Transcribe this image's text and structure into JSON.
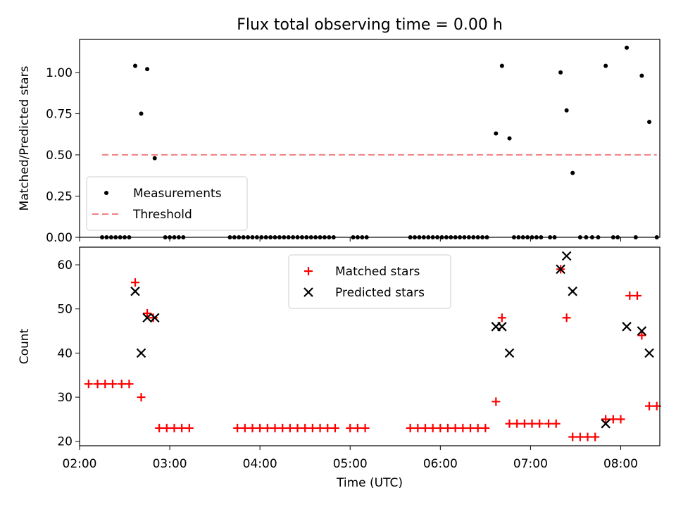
{
  "figure": {
    "title": "Flux total observing time = 0.00 h"
  },
  "chart_data": [
    {
      "type": "scatter",
      "ylabel": "Matched/Predicted stars",
      "xlim": [
        "02:00",
        "08:26"
      ],
      "ylim": [
        0,
        1.2
      ],
      "x_ticks": [
        "02:00",
        "03:00",
        "04:00",
        "05:00",
        "06:00",
        "07:00",
        "08:00"
      ],
      "y_ticks": [
        "0.00",
        "0.25",
        "0.50",
        "0.75",
        "1.00"
      ],
      "legend_position": "lower left",
      "series": [
        {
          "name": "Measurements",
          "color": "#000000",
          "marker": "dot",
          "points": [
            [
              "02:15",
              0
            ],
            [
              "02:18",
              0
            ],
            [
              "02:21",
              0
            ],
            [
              "02:24",
              0
            ],
            [
              "02:27",
              0
            ],
            [
              "02:30",
              0
            ],
            [
              "02:33",
              0
            ],
            [
              "02:37",
              1.04
            ],
            [
              "02:41",
              0.75
            ],
            [
              "02:45",
              1.02
            ],
            [
              "02:50",
              0.48
            ],
            [
              "02:57",
              0
            ],
            [
              "03:00",
              0
            ],
            [
              "03:03",
              0
            ],
            [
              "03:06",
              0
            ],
            [
              "03:09",
              0
            ],
            [
              "03:40",
              0
            ],
            [
              "03:43",
              0
            ],
            [
              "03:46",
              0
            ],
            [
              "03:49",
              0
            ],
            [
              "03:52",
              0
            ],
            [
              "03:55",
              0
            ],
            [
              "03:58",
              0
            ],
            [
              "04:01",
              0
            ],
            [
              "04:04",
              0
            ],
            [
              "04:07",
              0
            ],
            [
              "04:10",
              0
            ],
            [
              "04:13",
              0
            ],
            [
              "04:16",
              0
            ],
            [
              "04:19",
              0
            ],
            [
              "04:22",
              0
            ],
            [
              "04:25",
              0
            ],
            [
              "04:28",
              0
            ],
            [
              "04:31",
              0
            ],
            [
              "04:34",
              0
            ],
            [
              "04:37",
              0
            ],
            [
              "04:40",
              0
            ],
            [
              "04:43",
              0
            ],
            [
              "04:46",
              0
            ],
            [
              "04:49",
              0
            ],
            [
              "05:02",
              0
            ],
            [
              "05:05",
              0
            ],
            [
              "05:08",
              0
            ],
            [
              "05:11",
              0
            ],
            [
              "05:40",
              0
            ],
            [
              "05:43",
              0
            ],
            [
              "05:46",
              0
            ],
            [
              "05:49",
              0
            ],
            [
              "05:52",
              0
            ],
            [
              "05:55",
              0
            ],
            [
              "05:58",
              0
            ],
            [
              "06:01",
              0
            ],
            [
              "06:04",
              0
            ],
            [
              "06:07",
              0
            ],
            [
              "06:10",
              0
            ],
            [
              "06:13",
              0
            ],
            [
              "06:16",
              0
            ],
            [
              "06:19",
              0
            ],
            [
              "06:22",
              0
            ],
            [
              "06:25",
              0
            ],
            [
              "06:28",
              0
            ],
            [
              "06:31",
              0
            ],
            [
              "06:37",
              0.63
            ],
            [
              "06:41",
              1.04
            ],
            [
              "06:46",
              0.6
            ],
            [
              "06:49",
              0
            ],
            [
              "06:52",
              0
            ],
            [
              "06:55",
              0
            ],
            [
              "06:58",
              0
            ],
            [
              "07:01",
              0
            ],
            [
              "07:04",
              0
            ],
            [
              "07:07",
              0
            ],
            [
              "07:13",
              0
            ],
            [
              "07:16",
              0
            ],
            [
              "07:20",
              1.0
            ],
            [
              "07:24",
              0.77
            ],
            [
              "07:28",
              0.39
            ],
            [
              "07:33",
              0
            ],
            [
              "07:37",
              0
            ],
            [
              "07:41",
              0
            ],
            [
              "07:45",
              0
            ],
            [
              "07:50",
              1.04
            ],
            [
              "07:55",
              0
            ],
            [
              "07:58",
              0
            ],
            [
              "08:04",
              1.15
            ],
            [
              "08:10",
              0
            ],
            [
              "08:14",
              0.98
            ],
            [
              "08:19",
              0.7
            ],
            [
              "08:24",
              0
            ]
          ]
        },
        {
          "name": "Threshold",
          "color": "#f08080",
          "style": "dashed",
          "points": [
            [
              "02:15",
              0.5
            ],
            [
              "08:24",
              0.5
            ]
          ]
        }
      ]
    },
    {
      "type": "scatter",
      "xlabel": "Time (UTC)",
      "ylabel": "Count",
      "xlim": [
        "02:00",
        "08:26"
      ],
      "ylim": [
        19,
        64
      ],
      "x_ticks": [
        "02:00",
        "03:00",
        "04:00",
        "05:00",
        "06:00",
        "07:00",
        "08:00"
      ],
      "y_ticks": [
        "20",
        "30",
        "40",
        "50",
        "60"
      ],
      "legend_position": "upper center",
      "series": [
        {
          "name": "Matched stars",
          "color": "#ff0000",
          "marker": "plus",
          "points": [
            [
              "02:06",
              33
            ],
            [
              "02:12",
              33
            ],
            [
              "02:17",
              33
            ],
            [
              "02:22",
              33
            ],
            [
              "02:28",
              33
            ],
            [
              "02:33",
              33
            ],
            [
              "02:37",
              56
            ],
            [
              "02:41",
              30
            ],
            [
              "02:45",
              49
            ],
            [
              "02:49",
              48
            ],
            [
              "02:53",
              23
            ],
            [
              "02:58",
              23
            ],
            [
              "03:03",
              23
            ],
            [
              "03:08",
              23
            ],
            [
              "03:13",
              23
            ],
            [
              "03:45",
              23
            ],
            [
              "03:50",
              23
            ],
            [
              "03:55",
              23
            ],
            [
              "04:00",
              23
            ],
            [
              "04:05",
              23
            ],
            [
              "04:10",
              23
            ],
            [
              "04:15",
              23
            ],
            [
              "04:20",
              23
            ],
            [
              "04:25",
              23
            ],
            [
              "04:30",
              23
            ],
            [
              "04:35",
              23
            ],
            [
              "04:40",
              23
            ],
            [
              "04:45",
              23
            ],
            [
              "04:50",
              23
            ],
            [
              "05:00",
              23
            ],
            [
              "05:05",
              23
            ],
            [
              "05:10",
              23
            ],
            [
              "05:40",
              23
            ],
            [
              "05:45",
              23
            ],
            [
              "05:50",
              23
            ],
            [
              "05:55",
              23
            ],
            [
              "06:00",
              23
            ],
            [
              "06:05",
              23
            ],
            [
              "06:10",
              23
            ],
            [
              "06:15",
              23
            ],
            [
              "06:20",
              23
            ],
            [
              "06:25",
              23
            ],
            [
              "06:30",
              23
            ],
            [
              "06:37",
              29
            ],
            [
              "06:41",
              48
            ],
            [
              "06:46",
              24
            ],
            [
              "06:51",
              24
            ],
            [
              "06:56",
              24
            ],
            [
              "07:01",
              24
            ],
            [
              "07:06",
              24
            ],
            [
              "07:12",
              24
            ],
            [
              "07:17",
              24
            ],
            [
              "07:20",
              59
            ],
            [
              "07:24",
              48
            ],
            [
              "07:28",
              21
            ],
            [
              "07:33",
              21
            ],
            [
              "07:38",
              21
            ],
            [
              "07:43",
              21
            ],
            [
              "07:50",
              25
            ],
            [
              "07:55",
              25
            ],
            [
              "08:00",
              25
            ],
            [
              "08:06",
              53
            ],
            [
              "08:11",
              53
            ],
            [
              "08:14",
              44
            ],
            [
              "08:19",
              28
            ],
            [
              "08:24",
              28
            ]
          ]
        },
        {
          "name": "Predicted stars",
          "color": "#000000",
          "marker": "x",
          "points": [
            [
              "02:37",
              54
            ],
            [
              "02:41",
              40
            ],
            [
              "02:45",
              48
            ],
            [
              "02:50",
              48
            ],
            [
              "06:37",
              46
            ],
            [
              "06:41",
              46
            ],
            [
              "06:46",
              40
            ],
            [
              "07:20",
              59
            ],
            [
              "07:24",
              62
            ],
            [
              "07:28",
              54
            ],
            [
              "07:50",
              24
            ],
            [
              "08:04",
              46
            ],
            [
              "08:14",
              45
            ],
            [
              "08:19",
              40
            ]
          ]
        }
      ]
    }
  ]
}
